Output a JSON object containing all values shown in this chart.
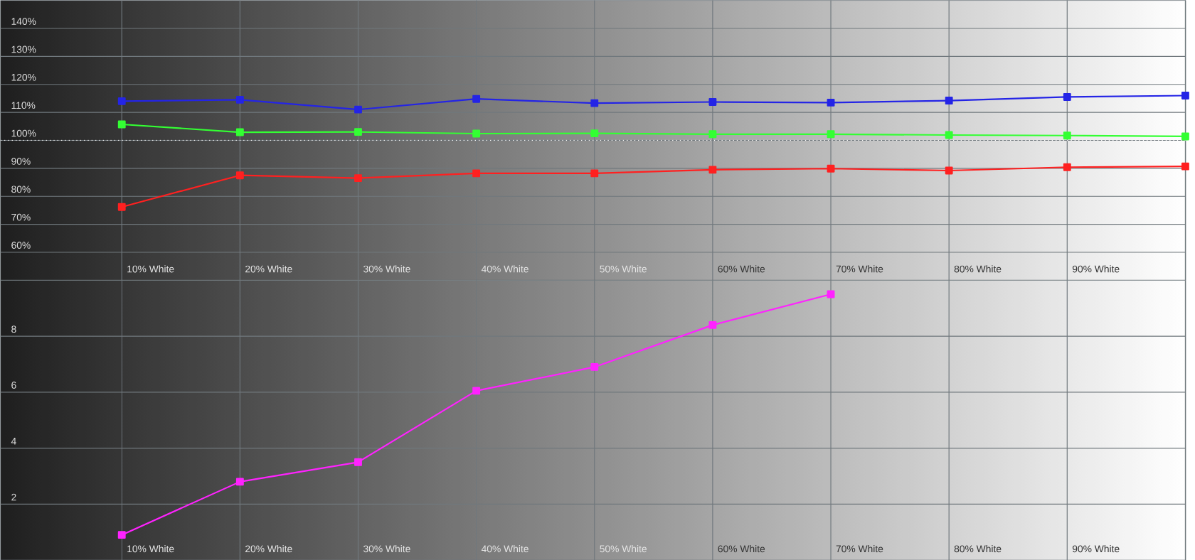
{
  "chart_data": [
    {
      "type": "line",
      "categories": [
        "10% White",
        "20% White",
        "30% White",
        "40% White",
        "50% White",
        "60% White",
        "70% White",
        "80% White",
        "90% White",
        null
      ],
      "series": [
        {
          "color": "#2424e6",
          "values": [
            114.0,
            114.5,
            111.0,
            114.8,
            113.3,
            113.7,
            113.5,
            114.2,
            115.5,
            116.0
          ]
        },
        {
          "color": "#33ff33",
          "values": [
            105.7,
            102.9,
            103.0,
            102.4,
            102.5,
            102.2,
            102.2,
            101.9,
            101.7,
            101.4
          ]
        },
        {
          "color": "#ff2020",
          "values": [
            76.2,
            87.5,
            86.5,
            88.2,
            88.2,
            89.5,
            89.9,
            89.2,
            90.4,
            90.7
          ]
        }
      ],
      "ylim": [
        50,
        150
      ],
      "yticks": [
        {
          "value": 60,
          "label": "60%"
        },
        {
          "value": 70,
          "label": "70%"
        },
        {
          "value": 80,
          "label": "80%"
        },
        {
          "value": 90,
          "label": "90%"
        },
        {
          "value": 100,
          "label": "100%"
        },
        {
          "value": 110,
          "label": "110%"
        },
        {
          "value": 120,
          "label": "120%"
        },
        {
          "value": 130,
          "label": "130%"
        },
        {
          "value": 140,
          "label": "140%"
        }
      ],
      "ref_lines": [
        {
          "axis": "y",
          "value": 100,
          "color": "#ffffff",
          "line_style": "dotted"
        }
      ],
      "grid": true,
      "marker": "square",
      "line_style": "solid"
    },
    {
      "type": "line",
      "categories": [
        "10% White",
        "20% White",
        "30% White",
        "40% White",
        "50% White",
        "60% White",
        "70% White",
        "80% White",
        "90% White",
        null
      ],
      "series": [
        {
          "color": "#ff22ff",
          "values": [
            0.9,
            2.8,
            3.5,
            6.05,
            6.9,
            8.4,
            9.5,
            null,
            null,
            null
          ]
        }
      ],
      "ylim": [
        0,
        10
      ],
      "yticks": [
        2,
        4,
        6,
        8
      ],
      "grid": true,
      "marker": "square",
      "line_style": "solid"
    }
  ]
}
